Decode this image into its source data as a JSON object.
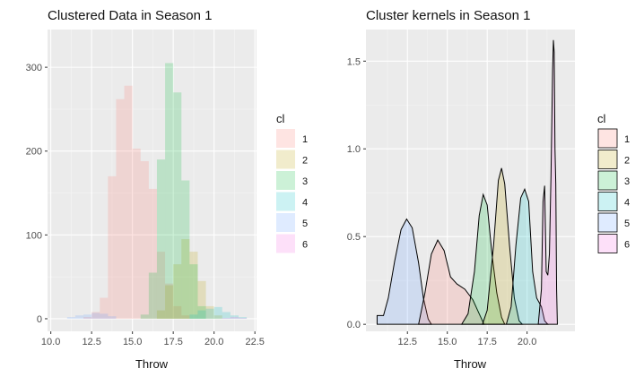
{
  "chart_data": [
    {
      "type": "bar",
      "title": "Clustered Data in Season  1",
      "xlabel": "Throw",
      "ylabel": "",
      "xlim": [
        9.8,
        22.6
      ],
      "ylim": [
        -15,
        345
      ],
      "xticks": [
        "10.0",
        "12.5",
        "15.0",
        "17.5",
        "20.0",
        "22.5"
      ],
      "yticks": [
        "0",
        "100",
        "200",
        "300"
      ],
      "bin_width": 0.5,
      "legend": {
        "title": "cl",
        "entries": [
          "1",
          "2",
          "3",
          "4",
          "5",
          "6"
        ],
        "position": "right"
      },
      "series": [
        {
          "name": "1",
          "color": "#F8766D",
          "bins": [
            [
              12.0,
              2
            ],
            [
              12.5,
              8
            ],
            [
              13.0,
              25
            ],
            [
              13.5,
              170
            ],
            [
              14.0,
              262
            ],
            [
              14.5,
              278
            ],
            [
              15.0,
              203
            ],
            [
              15.5,
              188
            ],
            [
              16.0,
              155
            ],
            [
              16.5,
              80
            ],
            [
              17.0,
              42
            ],
            [
              17.5,
              15
            ],
            [
              18.0,
              4
            ]
          ]
        },
        {
          "name": "2",
          "color": "#B79F00",
          "bins": [
            [
              16.5,
              10
            ],
            [
              17.0,
              40
            ],
            [
              17.5,
              65
            ],
            [
              18.0,
              95
            ],
            [
              18.5,
              80
            ],
            [
              19.0,
              45
            ],
            [
              19.5,
              15
            ],
            [
              20.0,
              4
            ]
          ]
        },
        {
          "name": "3",
          "color": "#00BA38",
          "bins": [
            [
              15.5,
              5
            ],
            [
              16.0,
              55
            ],
            [
              16.5,
              190
            ],
            [
              17.0,
              305
            ],
            [
              17.5,
              270
            ],
            [
              18.0,
              165
            ],
            [
              18.5,
              65
            ],
            [
              19.0,
              15
            ]
          ]
        },
        {
          "name": "4",
          "color": "#00BFC4",
          "bins": [
            [
              18.5,
              5
            ],
            [
              19.0,
              10
            ],
            [
              19.5,
              12
            ],
            [
              20.0,
              14
            ],
            [
              20.5,
              8
            ],
            [
              21.0,
              4
            ],
            [
              21.5,
              2
            ]
          ]
        },
        {
          "name": "5",
          "color": "#619CFF",
          "bins": [
            [
              11.0,
              2
            ],
            [
              11.5,
              4
            ],
            [
              12.0,
              5
            ],
            [
              12.5,
              7
            ],
            [
              13.0,
              6
            ],
            [
              13.5,
              3
            ]
          ]
        },
        {
          "name": "6",
          "color": "#F564E3",
          "bins": [
            [
              20.5,
              1
            ],
            [
              21.0,
              2
            ],
            [
              21.5,
              1
            ]
          ]
        }
      ]
    },
    {
      "type": "area",
      "title": "Cluster kernels in Season  1",
      "xlabel": "Throw",
      "ylabel": "",
      "xlim": [
        9.9,
        23.0
      ],
      "ylim": [
        -0.04,
        1.68
      ],
      "xticks": [
        "12.5",
        "15.0",
        "17.5",
        "20.0"
      ],
      "yticks": [
        "0.0",
        "0.5",
        "1.0",
        "1.5"
      ],
      "legend": {
        "title": "cl",
        "entries": [
          "1",
          "2",
          "3",
          "4",
          "5",
          "6"
        ],
        "position": "right"
      },
      "series": [
        {
          "name": "5",
          "color": "#619CFF",
          "points": [
            [
              10.6,
              0.05
            ],
            [
              11.0,
              0.05
            ],
            [
              11.3,
              0.15
            ],
            [
              11.7,
              0.36
            ],
            [
              12.1,
              0.54
            ],
            [
              12.45,
              0.6
            ],
            [
              12.8,
              0.55
            ],
            [
              13.2,
              0.35
            ],
            [
              13.5,
              0.15
            ],
            [
              13.8,
              0.03
            ],
            [
              14.0,
              0.0
            ]
          ]
        },
        {
          "name": "1",
          "color": "#F8766D",
          "points": [
            [
              13.2,
              0.0
            ],
            [
              13.6,
              0.18
            ],
            [
              14.0,
              0.4
            ],
            [
              14.4,
              0.48
            ],
            [
              14.8,
              0.42
            ],
            [
              15.2,
              0.27
            ],
            [
              15.6,
              0.23
            ],
            [
              16.1,
              0.2
            ],
            [
              16.6,
              0.14
            ],
            [
              17.0,
              0.06
            ],
            [
              17.3,
              0.0
            ]
          ]
        },
        {
          "name": "3",
          "color": "#00BA38",
          "points": [
            [
              15.9,
              0.0
            ],
            [
              16.3,
              0.06
            ],
            [
              16.7,
              0.3
            ],
            [
              17.0,
              0.62
            ],
            [
              17.25,
              0.74
            ],
            [
              17.5,
              0.68
            ],
            [
              17.8,
              0.4
            ],
            [
              18.1,
              0.18
            ],
            [
              18.4,
              0.04
            ],
            [
              18.6,
              0.0
            ]
          ]
        },
        {
          "name": "2",
          "color": "#B79F00",
          "points": [
            [
              17.2,
              0.0
            ],
            [
              17.5,
              0.08
            ],
            [
              17.9,
              0.45
            ],
            [
              18.2,
              0.82
            ],
            [
              18.4,
              0.89
            ],
            [
              18.6,
              0.8
            ],
            [
              18.9,
              0.45
            ],
            [
              19.2,
              0.15
            ],
            [
              19.5,
              0.02
            ],
            [
              19.7,
              0.0
            ]
          ]
        },
        {
          "name": "4",
          "color": "#00BFC4",
          "points": [
            [
              18.7,
              0.0
            ],
            [
              19.0,
              0.1
            ],
            [
              19.3,
              0.45
            ],
            [
              19.6,
              0.72
            ],
            [
              19.85,
              0.77
            ],
            [
              20.1,
              0.7
            ],
            [
              20.35,
              0.3
            ],
            [
              20.6,
              0.15
            ],
            [
              20.9,
              0.1
            ],
            [
              21.1,
              0.02
            ],
            [
              21.3,
              0.0
            ]
          ]
        },
        {
          "name": "6",
          "color": "#F564E3",
          "points": [
            [
              20.7,
              0.0
            ],
            [
              20.9,
              0.2
            ],
            [
              21.0,
              0.7
            ],
            [
              21.1,
              0.79
            ],
            [
              21.2,
              0.3
            ],
            [
              21.3,
              0.28
            ],
            [
              21.4,
              0.4
            ],
            [
              21.5,
              0.85
            ],
            [
              21.6,
              1.45
            ],
            [
              21.65,
              1.62
            ],
            [
              21.7,
              1.55
            ],
            [
              21.75,
              1.0
            ],
            [
              21.8,
              0.8
            ],
            [
              21.85,
              0.2
            ],
            [
              21.9,
              0.0
            ]
          ]
        }
      ]
    }
  ]
}
